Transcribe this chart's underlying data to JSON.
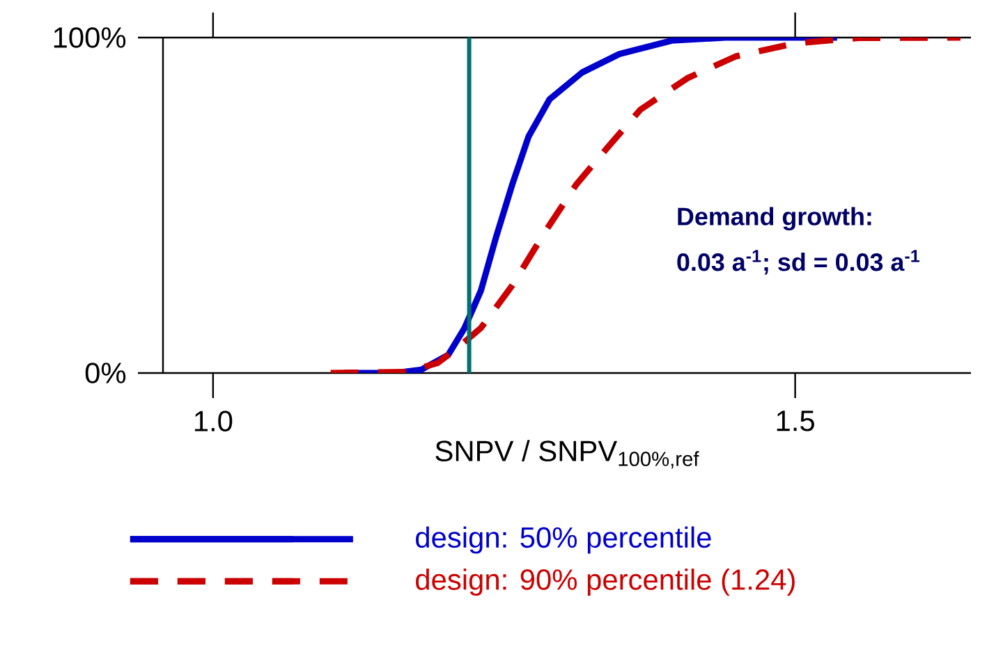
{
  "chart_data": {
    "type": "line",
    "xlabel": "SNPV / SNPV$_{100%,ref}$",
    "xlim": [
      0.957,
      1.651
    ],
    "ylim": [
      0,
      100
    ],
    "xticks": [
      {
        "value": 1.0,
        "label": "1.0"
      },
      {
        "value": 1.5,
        "label": "1.5"
      }
    ],
    "yticks": [
      {
        "value": 0,
        "label": "0%"
      },
      {
        "value": 100,
        "label": "100%"
      }
    ],
    "grid": false,
    "legend": "bottom",
    "marker": "none",
    "annotations": [
      "Demand growth:",
      "0.03 a$^{-1}$; sd = 0.03 a$^{-1}$"
    ],
    "ref_lines": [
      {
        "axis": "x",
        "value": 1.22,
        "color": "#007070"
      }
    ],
    "series": [
      {
        "name": "design: 50% percentile",
        "color": "#0000cc",
        "line_style": "solid",
        "x": [
          1.113,
          1.156,
          1.179,
          1.202,
          1.216,
          1.23,
          1.243,
          1.257,
          1.271,
          1.289,
          1.317,
          1.349,
          1.394,
          1.44,
          1.536
        ],
        "values": [
          0,
          0,
          1.0,
          5.4,
          13.4,
          24.5,
          40.4,
          56.2,
          70.5,
          81.6,
          89.6,
          95.1,
          99.1,
          100,
          100
        ]
      },
      {
        "name": "design: 90% percentile (1.24)",
        "color": "#cc0000",
        "line_style": "dashed",
        "x": [
          1.101,
          1.166,
          1.193,
          1.211,
          1.23,
          1.257,
          1.285,
          1.312,
          1.339,
          1.367,
          1.408,
          1.449,
          1.5,
          1.555,
          1.642
        ],
        "values": [
          0,
          0.3,
          3.0,
          7.8,
          13.4,
          26.1,
          42.0,
          56.2,
          67.3,
          78.5,
          88.0,
          94.4,
          98.3,
          99.9,
          100
        ]
      }
    ]
  }
}
